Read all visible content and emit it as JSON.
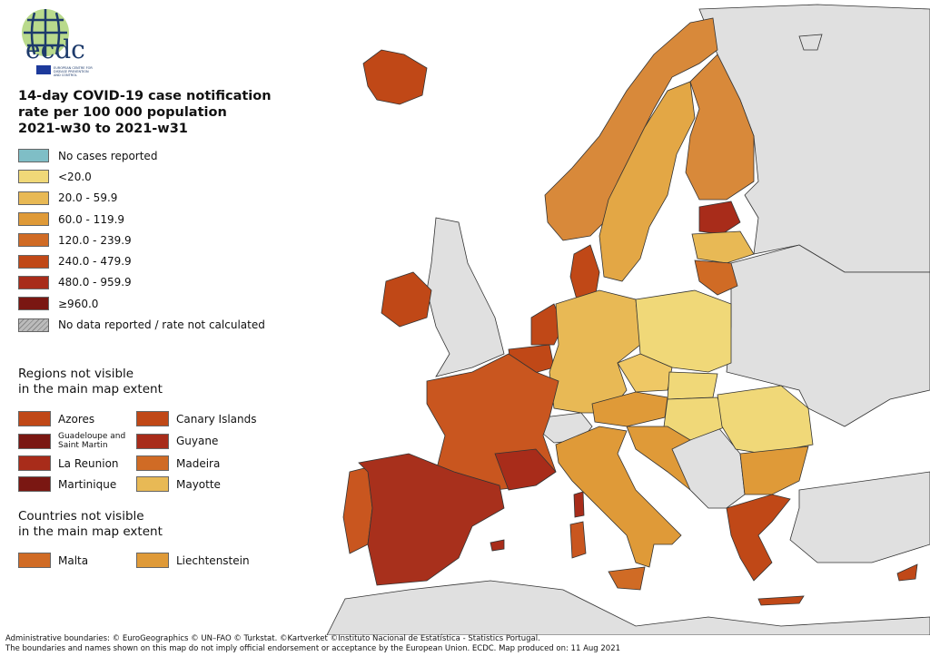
{
  "logo": {
    "text": "ecdc",
    "subtitle": "EUROPEAN CENTRE FOR DISEASE PREVENTION AND CONTROL"
  },
  "title": [
    "14-day COVID-19 case notification",
    "rate per 100 000 population",
    "2021-w30 to 2021-w31"
  ],
  "legend": [
    {
      "label": "No cases reported",
      "color": "#7fbec6"
    },
    {
      "label": "<20.0",
      "color": "#f0d878"
    },
    {
      "label": "20.0 - 59.9",
      "color": "#e8b955"
    },
    {
      "label": "60.0 - 119.9",
      "color": "#df9a38"
    },
    {
      "label": "120.0 - 239.9",
      "color": "#d06b25"
    },
    {
      "label": "240.0 - 479.9",
      "color": "#c04817"
    },
    {
      "label": "480.0 - 959.9",
      "color": "#a82c1a"
    },
    {
      "label": "≥960.0",
      "color": "#7a1712"
    },
    {
      "label": "No data reported / rate not calculated",
      "color": "hatched"
    }
  ],
  "regions_heading": [
    "Regions not visible",
    "in the main map extent"
  ],
  "regions": [
    {
      "label": "Azores",
      "color": "#c04817"
    },
    {
      "label": "Canary Islands",
      "color": "#c04817"
    },
    {
      "label": "Guadeloupe and Saint Martin",
      "color": "#7a1712"
    },
    {
      "label": "Guyane",
      "color": "#a82c1a"
    },
    {
      "label": "La Reunion",
      "color": "#a82c1a"
    },
    {
      "label": "Madeira",
      "color": "#d06b25"
    },
    {
      "label": "Martinique",
      "color": "#7a1712"
    },
    {
      "label": "Mayotte",
      "color": "#e8b955"
    }
  ],
  "countries_heading": [
    "Countries not visible",
    "in the main map extent"
  ],
  "countries": [
    {
      "label": "Malta",
      "color": "#d06b25"
    },
    {
      "label": "Liechtenstein",
      "color": "#df9a38"
    }
  ],
  "footer": [
    "Administrative boundaries: © EuroGeographics © UN–FAO © Turkstat. ©Kartverket ©Instituto Nacional de Estatística - Statistics Portugal.",
    "The boundaries and names shown on this map do not imply official endorsement or acceptance by the European Union. ECDC. Map produced on: 11 Aug 2021"
  ]
}
